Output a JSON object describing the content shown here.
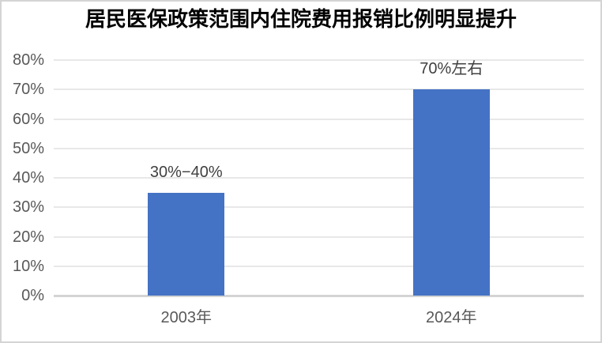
{
  "chart_data": {
    "type": "bar",
    "title": "居民医保政策范围内住院费用报销比例明显提升",
    "categories": [
      "2003年",
      "2024年"
    ],
    "values": [
      35,
      70
    ],
    "data_labels": [
      "30%−40%",
      "70%左右"
    ],
    "xlabel": "",
    "ylabel": "",
    "ylim": [
      0,
      80
    ],
    "ytick_step": 10,
    "ytick_labels": [
      "0%",
      "10%",
      "20%",
      "30%",
      "40%",
      "50%",
      "60%",
      "70%",
      "80%"
    ],
    "grid": true,
    "legend": false,
    "colors": {
      "bar": "#4472c4",
      "gridline": "#e8e8e8",
      "axis_line": "#d4d4d4",
      "tick_text": "#595959",
      "data_label_text": "#404040",
      "category_text": "#595959",
      "title_text": "#000000",
      "frame_border": "#d4d4d4",
      "background": "#ffffff"
    }
  }
}
